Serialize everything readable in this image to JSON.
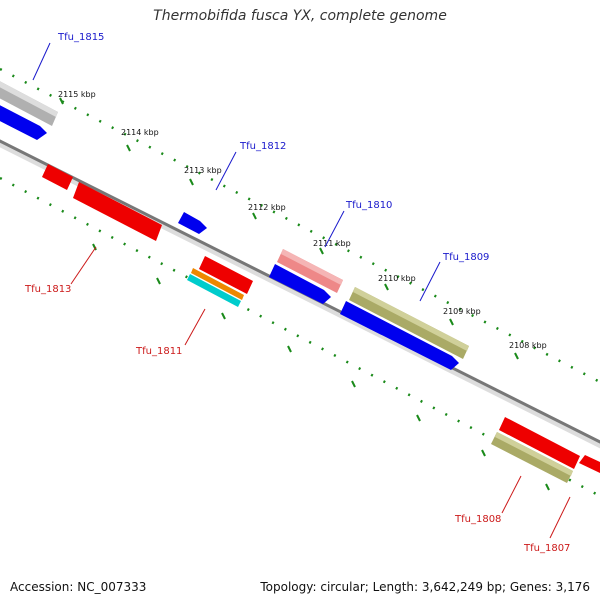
{
  "title": "Thermobifida fusca YX, complete genome",
  "accession": "Accession: NC_007333",
  "topology": "Topology: circular; Length: 3,642,249 bp; Genes: 3,176",
  "colors": {
    "backbone": "#777777",
    "tick": "#1a8a1a",
    "forward_label": "#1a1acc",
    "reverse_label": "#cc1a1a"
  },
  "tick_labels": [
    "2115 kbp",
    "2114 kbp",
    "2113 kbp",
    "2112 kbp",
    "2111 kbp",
    "2110 kbp",
    "2109 kbp",
    "2108 kbp"
  ],
  "gene_labels": {
    "forward": [
      "Tfu_1815",
      "Tfu_1812",
      "Tfu_1810",
      "Tfu_1809"
    ],
    "reverse": [
      "Tfu_1813",
      "Tfu_1811",
      "Tfu_1808",
      "Tfu_1807"
    ]
  },
  "feature_colors": {
    "cds_forward": "#0000ee",
    "cds_reverse": "#ee0000",
    "gray": "#aaaaaa",
    "pink": "#ee8888",
    "olive": "#aaaa66",
    "orange": "#ee8800",
    "cyan": "#00cccc"
  }
}
